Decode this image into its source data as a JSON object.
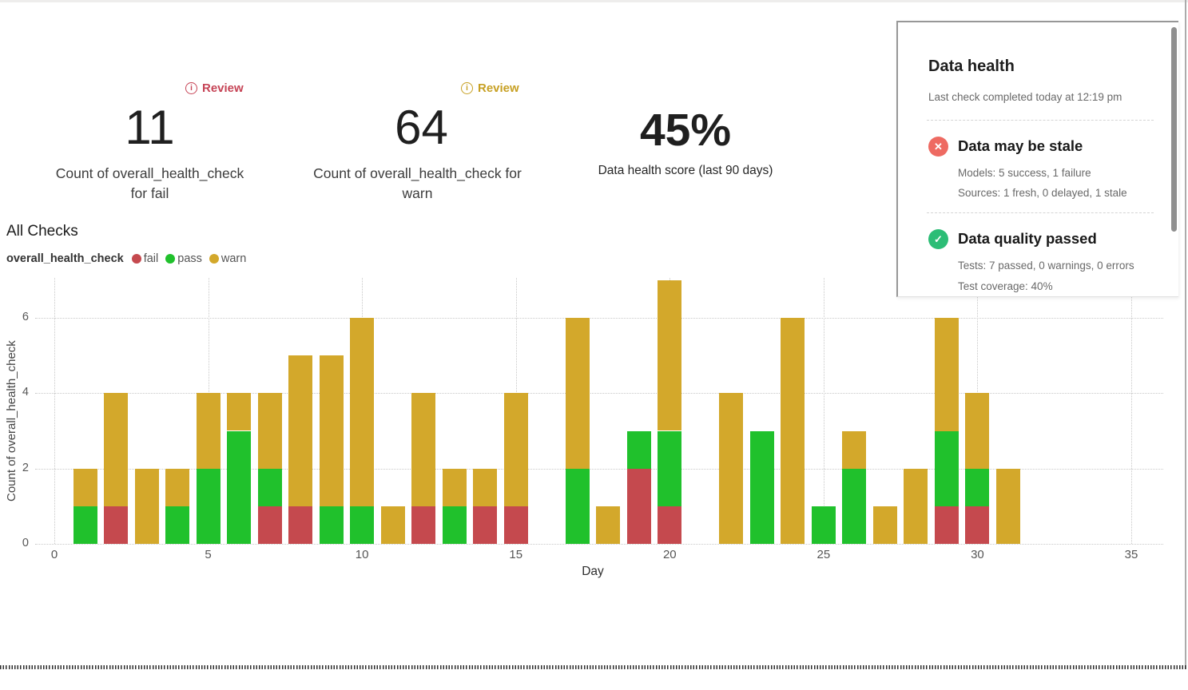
{
  "metrics": [
    {
      "badge_label": "Review",
      "badge_color": "#c64456",
      "value": "11",
      "label_lines": [
        "Count of overall_health_check",
        "for fail"
      ]
    },
    {
      "badge_label": "Review",
      "badge_color": "#c7a023",
      "value": "64",
      "label_lines": [
        "Count of overall_health_check for",
        "warn"
      ]
    },
    {
      "value": "45%",
      "label": "Data health score (last 90 days)"
    }
  ],
  "health_panel": {
    "title": "Data health",
    "subtitle": "Last check completed today at 12:19 pm",
    "items": [
      {
        "icon": "x-circle-icon",
        "icon_color": "#ee6a62",
        "icon_glyph": "✕",
        "title": "Data may be stale",
        "details": [
          "Models: 5 success, 1 failure",
          "Sources: 1 fresh, 0 delayed, 1 stale"
        ]
      },
      {
        "icon": "check-circle-icon",
        "icon_color": "#2cbd76",
        "icon_glyph": "✓",
        "title": "Data quality passed",
        "details": [
          "Tests: 7 passed, 0 warnings, 0 errors",
          "Test coverage: 40%"
        ]
      }
    ]
  },
  "chart_data": {
    "type": "bar",
    "stacked": true,
    "title": "All Checks",
    "legend_label": "overall_health_check",
    "xlabel": "Day",
    "ylabel": "Count of overall_health_check",
    "x": [
      1,
      2,
      3,
      4,
      5,
      6,
      7,
      8,
      9,
      10,
      11,
      12,
      13,
      14,
      15,
      16,
      17,
      18,
      19,
      20,
      21,
      22,
      23,
      24,
      25,
      26,
      27,
      28,
      29,
      30,
      31
    ],
    "series": [
      {
        "name": "fail",
        "color": "#c5494e",
        "values": [
          0,
          1,
          0,
          0,
          0,
          0,
          1,
          1,
          0,
          0,
          0,
          1,
          0,
          1,
          1,
          0,
          0,
          0,
          2,
          1,
          0,
          0,
          0,
          0,
          0,
          0,
          0,
          0,
          1,
          1,
          0
        ]
      },
      {
        "name": "pass",
        "color": "#20c12c",
        "values": [
          1,
          0,
          0,
          1,
          2,
          3,
          1,
          0,
          1,
          1,
          0,
          0,
          1,
          0,
          0,
          0,
          2,
          0,
          1,
          2,
          0,
          0,
          3,
          0,
          1,
          2,
          0,
          0,
          2,
          1,
          0
        ]
      },
      {
        "name": "warn",
        "color": "#d3a82b",
        "values": [
          1,
          3,
          2,
          1,
          2,
          1,
          2,
          4,
          4,
          5,
          1,
          3,
          1,
          1,
          3,
          0,
          4,
          1,
          0,
          4,
          0,
          4,
          0,
          6,
          0,
          1,
          1,
          2,
          3,
          2,
          2
        ]
      }
    ],
    "x_ticks": [
      0,
      5,
      10,
      15,
      20,
      25,
      30,
      35
    ],
    "y_ticks": [
      0,
      2,
      4,
      6
    ],
    "xlim": [
      0,
      36.5
    ],
    "ylim": [
      0,
      7.1
    ],
    "grid": "dotted",
    "legend_position": "top-left"
  }
}
